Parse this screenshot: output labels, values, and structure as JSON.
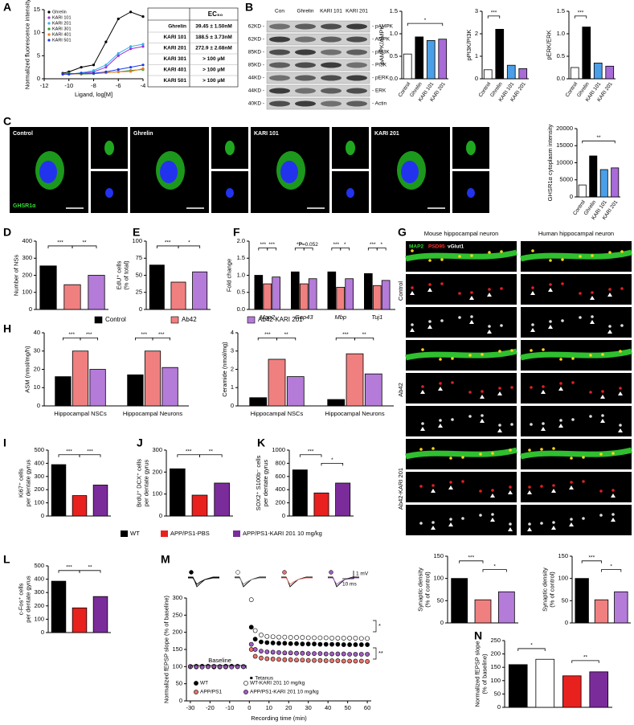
{
  "panel_labels": [
    "A",
    "B",
    "C",
    "D",
    "E",
    "F",
    "G",
    "H",
    "I",
    "J",
    "K",
    "L",
    "M",
    "N"
  ],
  "table_A": {
    "header": "EC₅₀",
    "rows": [
      [
        "Ghrelin",
        "39.45 ± 1.50nM"
      ],
      [
        "KARI 101",
        "188.5 ± 3.73nM"
      ],
      [
        "KARI 201",
        "272.9 ± 2.68nM"
      ],
      [
        "KARI 301",
        "> 100 μM"
      ],
      [
        "KARI 401",
        "> 100 μM"
      ],
      [
        "KARI 501",
        "> 100 μM"
      ]
    ]
  },
  "blot_B": {
    "columns": [
      "Con",
      "Ghrelin",
      "KARI 101",
      "KARI 201"
    ],
    "sizes": [
      "62KD -",
      "62KD -",
      "85KD -",
      "85KD -",
      "44KD -",
      "44KD -",
      "40KD -"
    ],
    "proteins": [
      "- pAMPK",
      "- AMPK",
      "- pPI3K",
      "- PI3K",
      "- pERK",
      "- ERK",
      "- Actin"
    ]
  },
  "images_C": {
    "titles": [
      "Control",
      "Ghrelin",
      "KARI 101",
      "KARI 201"
    ],
    "stain": "GHSR1α"
  },
  "images_G": {
    "columns": [
      "Mouse hippocampal neuron",
      "Human hippocampal neuron"
    ],
    "rows": [
      "Control",
      "Ab42",
      "Ab42-KARI 201"
    ],
    "stain": [
      "MAP2",
      "PSD95",
      "vGlut1"
    ]
  },
  "legend": [
    {
      "name": "WT",
      "color": "#000000"
    },
    {
      "name": "APP/PS1-PBS",
      "color": "#e8211f"
    },
    {
      "name": "APP/PS1-KARI 201 10 mg/kg",
      "color": "#7b2c9b"
    }
  ],
  "chart_data": [
    {
      "type": "line",
      "xlabel": "Ligand, log[M]",
      "ylabel": "Normalized fluorescence intensity",
      "x": [
        -10.5,
        -10,
        -9,
        -8,
        -7,
        -6,
        -5,
        -4
      ],
      "series": [
        {
          "name": "Ghrelin",
          "color": "#000000",
          "values": [
            1.2,
            1.5,
            2.5,
            3,
            8,
            13,
            14.5,
            13.5
          ]
        },
        {
          "name": "KARI 101",
          "color": "#9b30d9",
          "values": [
            1,
            1,
            1.2,
            1.5,
            2.5,
            5,
            6.5,
            7
          ]
        },
        {
          "name": "KARI 201",
          "color": "#3ab0e8",
          "values": [
            1,
            1,
            1.3,
            1.8,
            3,
            5.5,
            7,
            7.5
          ]
        },
        {
          "name": "KARI 301",
          "color": "#2e9e3a",
          "values": [
            1,
            1.2,
            1,
            1.1,
            1.3,
            1.5,
            1.8,
            2
          ]
        },
        {
          "name": "KARI 401",
          "color": "#f07a1a",
          "values": [
            1,
            1,
            1.1,
            1.2,
            1.3,
            1.5,
            1.6,
            2.2
          ]
        },
        {
          "name": "KARI 501",
          "color": "#1a3ae8",
          "values": [
            1,
            1,
            1.2,
            1.2,
            1.5,
            2,
            2.5,
            3
          ]
        }
      ],
      "xlim": [
        -12,
        -4
      ],
      "xticks": [
        -12,
        -10,
        -8,
        -6,
        -4
      ],
      "ylim": [
        0,
        15
      ],
      "yticks": [
        0,
        5,
        10,
        15
      ]
    },
    {
      "type": "bar",
      "ylabel": "pAMPK/AMPK",
      "categories": [
        "Control",
        "Ghrelin",
        "KARI 101",
        "KARI 201"
      ],
      "values": [
        0.55,
        0.93,
        0.85,
        0.88
      ],
      "colors": [
        "#ffffff",
        "#000000",
        "#4a9fe8",
        "#a86bd8"
      ],
      "ylim": [
        0,
        1.5
      ],
      "yticks": [
        {
          "value": 0,
          "label": "0.0"
        },
        0.5,
        {
          "value": 1,
          "label": "1.0"
        },
        1.5
      ],
      "annotations": [
        "*"
      ]
    },
    {
      "type": "bar",
      "ylabel": "pPI3K/PI3K",
      "categories": [
        "Control",
        "Ghrelin",
        "KARI 101",
        "KARI 201"
      ],
      "values": [
        0.4,
        2.2,
        0.6,
        0.45
      ],
      "colors": [
        "#ffffff",
        "#000000",
        "#4a9fe8",
        "#a86bd8"
      ],
      "ylim": [
        0,
        3
      ],
      "yticks": [
        0,
        1,
        2,
        3
      ],
      "annotations": [
        "***"
      ]
    },
    {
      "type": "bar",
      "ylabel": "pERK/ERK",
      "categories": [
        "Control",
        "Ghrelin",
        "KARI 101",
        "KARI 201"
      ],
      "values": [
        0.25,
        1.15,
        0.35,
        0.28
      ],
      "colors": [
        "#ffffff",
        "#000000",
        "#4a9fe8",
        "#a86bd8"
      ],
      "ylim": [
        0,
        1.5
      ],
      "yticks": [
        {
          "value": 0,
          "label": "0.0"
        },
        0.5,
        {
          "value": 1,
          "label": "1.0"
        },
        1.5
      ],
      "annotations": [
        "***"
      ]
    },
    {
      "type": "bar",
      "ylabel": "GHSR1α cytoplasm intensity",
      "categories": [
        "Control",
        "Ghrelin",
        "KARI 101",
        "KARI 201"
      ],
      "values": [
        3500,
        12000,
        8000,
        8500
      ],
      "colors": [
        "#ffffff",
        "#000000",
        "#4a9fe8",
        "#a86bd8"
      ],
      "ylim": [
        0,
        20000
      ],
      "yticks": [
        0,
        5000,
        10000,
        15000,
        20000
      ],
      "annotations": [
        "**"
      ]
    },
    {
      "type": "bar",
      "ylabel": "Number of NSs",
      "categories": [
        null,
        null,
        null
      ],
      "values": [
        255,
        145,
        200
      ],
      "colors": [
        "#000000",
        "#f08080",
        "#b57bd8"
      ],
      "ylim": [
        0,
        400
      ],
      "yticks": [
        0,
        100,
        200,
        300,
        400
      ],
      "annotations": [
        "***",
        "**"
      ]
    },
    {
      "type": "bar",
      "ylabel": [
        "EdU⁺ cells",
        "(% of total)"
      ],
      "categories": [
        null,
        null,
        null
      ],
      "values": [
        65,
        40,
        55
      ],
      "colors": [
        "#000000",
        "#f08080",
        "#b57bd8"
      ],
      "ylim": [
        0,
        100
      ],
      "yticks": [
        0,
        25,
        50,
        75,
        100
      ],
      "annotations": [
        "***",
        "*"
      ]
    },
    {
      "type": "bar",
      "ylabel": "Fold change",
      "categories": [
        "Map2",
        "Gap43",
        "Mbp",
        "Tuj1"
      ],
      "series": [
        {
          "name": "Control",
          "color": "#000000",
          "values": [
            1,
            1.1,
            1.1,
            1.05
          ]
        },
        {
          "name": "Ab42",
          "color": "#f08080",
          "values": [
            0.75,
            0.75,
            0.65,
            0.7
          ]
        },
        {
          "name": "Ab42-KARI 201",
          "color": "#b57bd8",
          "values": [
            0.95,
            0.9,
            0.9,
            0.85
          ]
        }
      ],
      "ylim": [
        0,
        2
      ],
      "yticks": [
        {
          "value": 0,
          "label": "0.0"
        },
        0.5,
        {
          "value": 1,
          "label": "1.0"
        },
        1.5,
        {
          "value": 2,
          "label": "2.0"
        }
      ],
      "annotations": [
        "***",
        "***",
        "***",
        "P=0.052",
        "***",
        "*",
        "***",
        "*"
      ]
    },
    {
      "type": "bar",
      "ylabel": "ASM (nmol/mg/h)",
      "categories": [
        "Hippocampal NSCs",
        "Hippocampal Neurons"
      ],
      "series": [
        {
          "color": "#000000",
          "values": [
            16,
            17
          ]
        },
        {
          "color": "#f08080",
          "values": [
            30,
            30
          ]
        },
        {
          "color": "#b57bd8",
          "values": [
            20,
            21
          ]
        }
      ],
      "ylim": [
        0,
        40
      ],
      "yticks": [
        0,
        10,
        20,
        30,
        40
      ],
      "annotations": [
        "***",
        "***",
        "***",
        "***"
      ]
    },
    {
      "type": "bar",
      "ylabel": "Ceramide (nmol/mg)",
      "categories": [
        "Hippocampal NSCs",
        "Hippocampal Neurons"
      ],
      "series": [
        {
          "color": "#000000",
          "values": [
            0.45,
            0.35
          ]
        },
        {
          "color": "#f08080",
          "values": [
            2.55,
            2.85
          ]
        },
        {
          "color": "#b57bd8",
          "values": [
            1.6,
            1.75
          ]
        }
      ],
      "ylim": [
        0,
        4
      ],
      "yticks": [
        0,
        1,
        2,
        3,
        4
      ],
      "annotations": [
        "***",
        "**",
        "***",
        "**"
      ]
    },
    {
      "type": "bar",
      "ylabel": [
        "Synaptic density",
        "(% of control)"
      ],
      "categories": [
        null,
        null,
        null
      ],
      "values": [
        100,
        52,
        70
      ],
      "colors": [
        "#000000",
        "#f08080",
        "#b57bd8"
      ],
      "ylim": [
        0,
        150
      ],
      "yticks": [
        0,
        50,
        100,
        150
      ],
      "annotations": [
        "***",
        "*"
      ]
    },
    {
      "type": "bar",
      "ylabel": [
        "Synaptic density",
        "(% of control)"
      ],
      "categories": [
        null,
        null,
        null
      ],
      "values": [
        100,
        52,
        70
      ],
      "colors": [
        "#000000",
        "#f08080",
        "#b57bd8"
      ],
      "ylim": [
        0,
        150
      ],
      "yticks": [
        0,
        50,
        100,
        150
      ],
      "annotations": [
        "***",
        "*"
      ]
    },
    {
      "type": "bar",
      "ylabel": [
        "Ki67⁺ cells",
        "per dentate gyrus"
      ],
      "categories": [
        null,
        null,
        null
      ],
      "values": [
        390,
        155,
        235
      ],
      "colors": [
        "#000000",
        "#e8211f",
        "#7b2c9b"
      ],
      "ylim": [
        0,
        500
      ],
      "yticks": [
        0,
        100,
        200,
        300,
        400,
        500
      ],
      "annotations": [
        "***",
        "***"
      ]
    },
    {
      "type": "bar",
      "ylabel": [
        "BrdU⁺ DCX⁺ cells",
        "per dentate gyrus"
      ],
      "categories": [
        null,
        null,
        null
      ],
      "values": [
        215,
        95,
        150
      ],
      "colors": [
        "#000000",
        "#e8211f",
        "#7b2c9b"
      ],
      "ylim": [
        0,
        300
      ],
      "yticks": [
        0,
        100,
        200,
        300
      ],
      "annotations": [
        "***",
        "**"
      ]
    },
    {
      "type": "bar",
      "ylabel": [
        "SOX2⁺ S100b⁻ cells",
        "per dentate gyrus"
      ],
      "categories": [
        null,
        null,
        null
      ],
      "values": [
        700,
        350,
        500
      ],
      "colors": [
        "#000000",
        "#e8211f",
        "#7b2c9b"
      ],
      "ylim": [
        0,
        1000
      ],
      "yticks": [
        0,
        200,
        400,
        600,
        800,
        1000
      ],
      "annotations": [
        "***",
        "*"
      ]
    },
    {
      "type": "bar",
      "ylabel": [
        "c-Fos⁺ cells",
        "per dentate gyrus"
      ],
      "categories": [
        null,
        null,
        null
      ],
      "values": [
        385,
        185,
        270
      ],
      "colors": [
        "#000000",
        "#e8211f",
        "#7b2c9b"
      ],
      "ylim": [
        0,
        500
      ],
      "yticks": [
        0,
        100,
        200,
        300,
        400,
        500
      ],
      "annotations": [
        "***",
        "**"
      ]
    },
    {
      "type": "scatter",
      "xlabel": "Recording time (min)",
      "ylabel": "Normalized fEPSP slope (% of baseline)",
      "x": [
        -30,
        -27,
        -24,
        -21,
        -18,
        -15,
        -12,
        -9,
        -6,
        -3,
        1,
        3,
        6,
        9,
        12,
        15,
        18,
        21,
        24,
        27,
        30,
        33,
        36,
        39,
        42,
        45,
        48,
        51,
        54,
        57,
        60
      ],
      "series": [
        {
          "name": "WT",
          "color": "#000000",
          "values": [
            100,
            101,
            99,
            100,
            100,
            99,
            101,
            100,
            100,
            100,
            215,
            180,
            172,
            170,
            169,
            168,
            168,
            167,
            167,
            166,
            166,
            166,
            165,
            165,
            165,
            165,
            164,
            164,
            164,
            164,
            164
          ]
        },
        {
          "name": "WT-KARI 201 10 mg/kg",
          "color": "#ffffff",
          "values": [
            100,
            100,
            101,
            100,
            99,
            100,
            100,
            101,
            100,
            100,
            295,
            205,
            192,
            188,
            187,
            186,
            186,
            185,
            185,
            185,
            184,
            184,
            184,
            184,
            183,
            183,
            183,
            183,
            183,
            182,
            182
          ]
        },
        {
          "name": "APP/PS1",
          "color": "#e8736b",
          "values": [
            100,
            99,
            100,
            101,
            100,
            100,
            99,
            100,
            101,
            100,
            150,
            130,
            125,
            123,
            122,
            121,
            120,
            120,
            119,
            119,
            118,
            118,
            118,
            117,
            117,
            117,
            116,
            116,
            116,
            116,
            115
          ]
        },
        {
          "name": "APP/PS1-KARI 201 10 mg/kg",
          "color": "#a05cc0",
          "values": [
            100,
            100,
            99,
            100,
            101,
            100,
            100,
            99,
            100,
            100,
            165,
            150,
            145,
            143,
            142,
            141,
            140,
            140,
            139,
            139,
            138,
            138,
            138,
            137,
            137,
            137,
            137,
            136,
            136,
            136,
            136
          ]
        }
      ],
      "xlim": [
        -32,
        62
      ],
      "xticks": [
        -30,
        -20,
        -10,
        0,
        10,
        20,
        30,
        40,
        50,
        60
      ],
      "ylim": [
        0,
        300
      ],
      "yticks": [
        0,
        50,
        100,
        150,
        200,
        250,
        300
      ],
      "annotations": [
        "Baseline",
        "Tetanus",
        "*",
        "**",
        "1 mV",
        "10 ms"
      ]
    },
    {
      "type": "bar",
      "ylabel": [
        "Normalized fEPSP slope",
        "(% of baseline)"
      ],
      "categories": [
        null,
        null,
        null,
        null
      ],
      "values": [
        160,
        180,
        118,
        133
      ],
      "colors": [
        "#000000",
        "#ffffff",
        "#e8211f",
        "#7b2c9b"
      ],
      "ylim": [
        0,
        250
      ],
      "yticks": [
        0,
        50,
        100,
        150,
        200,
        250
      ],
      "annotations": [
        "*",
        "**"
      ]
    }
  ]
}
